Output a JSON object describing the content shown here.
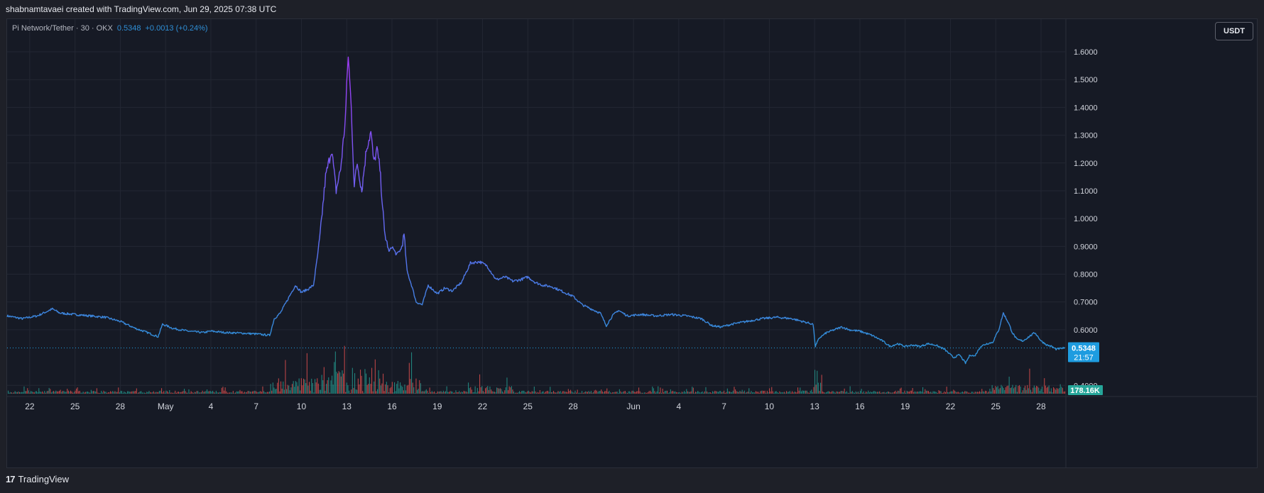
{
  "header": {
    "attribution": "shabnamtavaei created with TradingView.com, Jun 29, 2025 07:38 UTC"
  },
  "legend": {
    "symbol": "Pi Network/Tether · 30 · OKX",
    "price": "0.5348",
    "change": "+0.0013 (+0.24%)"
  },
  "currency": "USDT",
  "footer": {
    "logo_glyph": "17",
    "brand": "TradingView"
  },
  "colors": {
    "background": "#161a25",
    "grid": "#232733",
    "line_low": "#2f8fd6",
    "line_high": "#9b3cf5",
    "volume_up": "#26a69a",
    "volume_down": "#ef5350",
    "price_tag": "#1e9ce0",
    "volume_tag": "#26a69a"
  },
  "chart_data": {
    "type": "line",
    "title": "Pi Network/Tether · 30 · OKX",
    "ylabel": "",
    "xlabel": "",
    "ylim": [
      0.4,
      1.65
    ],
    "y_ticks": [
      "1.6000",
      "1.5000",
      "1.4000",
      "1.3000",
      "1.2000",
      "1.1000",
      "1.0000",
      "0.9000",
      "0.8000",
      "0.7000",
      "0.6000",
      "0.4000"
    ],
    "x_ticks": [
      {
        "label": "22",
        "day": -9
      },
      {
        "label": "25",
        "day": -6
      },
      {
        "label": "28",
        "day": -3
      },
      {
        "label": "May",
        "day": 0
      },
      {
        "label": "4",
        "day": 3
      },
      {
        "label": "7",
        "day": 6
      },
      {
        "label": "10",
        "day": 9
      },
      {
        "label": "13",
        "day": 12
      },
      {
        "label": "16",
        "day": 15
      },
      {
        "label": "19",
        "day": 18
      },
      {
        "label": "22",
        "day": 21
      },
      {
        "label": "25",
        "day": 24
      },
      {
        "label": "28",
        "day": 27
      },
      {
        "label": "Jun",
        "day": 31
      },
      {
        "label": "4",
        "day": 34
      },
      {
        "label": "7",
        "day": 37
      },
      {
        "label": "10",
        "day": 40
      },
      {
        "label": "13",
        "day": 43
      },
      {
        "label": "16",
        "day": 46
      },
      {
        "label": "19",
        "day": 49
      },
      {
        "label": "22",
        "day": 52
      },
      {
        "label": "25",
        "day": 55
      },
      {
        "label": "28",
        "day": 58
      }
    ],
    "x_range_days": [
      -10.5,
      59.6
    ],
    "grid": true,
    "series": [
      {
        "x": [
          -10.5,
          -9.5,
          -8.5,
          -7.5,
          -7.0,
          -6.0,
          -5.0,
          -4.0,
          -3.0,
          -2.0,
          -1.2,
          -0.5,
          -0.2,
          0.5,
          1.5,
          2.5,
          3.0,
          4.0,
          5.0,
          6.0,
          6.9,
          7.2,
          7.6,
          8.2,
          8.6,
          9.0,
          9.4,
          9.8,
          10.2,
          10.6,
          11.0,
          11.3,
          11.6,
          11.9,
          12.1,
          12.3,
          12.5,
          12.7,
          13.0,
          13.3,
          13.6,
          13.8,
          14.0,
          14.2,
          14.5,
          14.8,
          15.0,
          15.3,
          15.6,
          15.8,
          16.0,
          16.3,
          16.6,
          17.0,
          17.4,
          18.0,
          18.5,
          19.0,
          19.6,
          20.2,
          20.8,
          21.3,
          21.9,
          22.5,
          23.0,
          23.5,
          24.0,
          24.5,
          25.0,
          25.6,
          26.2,
          27.0,
          27.6,
          28.2,
          28.8,
          29.2,
          29.6,
          30.0,
          30.6,
          31.5,
          32.5,
          33.5,
          34.5,
          35.5,
          36.2,
          36.8,
          37.5,
          38.5,
          39.5,
          40.5,
          41.5,
          42.2,
          42.9,
          43.05,
          43.3,
          43.8,
          44.3,
          44.8,
          45.3,
          46.0,
          46.8,
          47.5,
          48.0,
          48.5,
          49.0,
          49.5,
          50.0,
          50.5,
          51.0,
          51.6,
          52.2,
          52.6,
          53.0,
          53.3,
          53.6,
          54.0,
          54.4,
          54.8,
          55.2,
          55.5,
          55.8,
          56.1,
          56.4,
          56.8,
          57.2,
          57.6,
          58.0,
          58.4,
          58.7,
          59.0,
          59.6
        ],
        "values": [
          0.65,
          0.64,
          0.65,
          0.675,
          0.66,
          0.655,
          0.65,
          0.645,
          0.63,
          0.605,
          0.59,
          0.575,
          0.62,
          0.605,
          0.595,
          0.59,
          0.595,
          0.59,
          0.588,
          0.585,
          0.58,
          0.64,
          0.66,
          0.72,
          0.76,
          0.735,
          0.745,
          0.76,
          0.92,
          1.15,
          1.25,
          1.1,
          1.18,
          1.35,
          1.59,
          1.4,
          1.12,
          1.2,
          1.1,
          1.25,
          1.31,
          1.2,
          1.25,
          1.18,
          0.95,
          0.88,
          0.9,
          0.87,
          0.89,
          0.94,
          0.81,
          0.76,
          0.7,
          0.69,
          0.76,
          0.73,
          0.75,
          0.74,
          0.77,
          0.84,
          0.845,
          0.83,
          0.78,
          0.79,
          0.775,
          0.78,
          0.79,
          0.77,
          0.76,
          0.755,
          0.74,
          0.72,
          0.69,
          0.675,
          0.66,
          0.615,
          0.65,
          0.67,
          0.65,
          0.655,
          0.65,
          0.655,
          0.65,
          0.64,
          0.615,
          0.61,
          0.62,
          0.63,
          0.64,
          0.645,
          0.64,
          0.63,
          0.62,
          0.54,
          0.57,
          0.59,
          0.6,
          0.61,
          0.6,
          0.595,
          0.58,
          0.56,
          0.54,
          0.55,
          0.54,
          0.545,
          0.54,
          0.55,
          0.545,
          0.53,
          0.5,
          0.51,
          0.48,
          0.51,
          0.505,
          0.54,
          0.55,
          0.555,
          0.6,
          0.66,
          0.63,
          0.59,
          0.565,
          0.56,
          0.575,
          0.59,
          0.56,
          0.545,
          0.54,
          0.53,
          0.535
        ]
      }
    ],
    "last_price": "0.5348",
    "countdown": "21:57",
    "volume_label": "178.16K"
  }
}
